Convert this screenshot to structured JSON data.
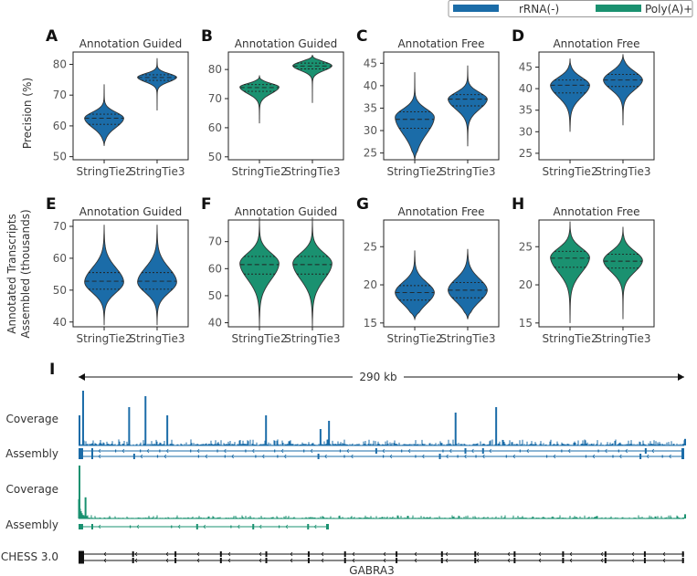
{
  "colors": {
    "rrna": "#1b6ca8",
    "polya": "#1a9170",
    "chess": "#111111"
  },
  "legend": [
    {
      "label": "rRNA(-)",
      "color": "#1b6ca8"
    },
    {
      "label": "Poly(A)+",
      "color": "#1a9170"
    }
  ],
  "row_ylabels": {
    "row1": "Precision (%)",
    "row2_line1": "Annotated Transcripts",
    "row2_line2": "Assembled (thousands)"
  },
  "chart_data": [
    {
      "type": "violin",
      "letter": "A",
      "title": "Annotation Guided",
      "color_key": "rrna",
      "categories": [
        "StringTie2",
        "StringTie3"
      ],
      "ylim": [
        49,
        84
      ],
      "yticks": [
        50,
        60,
        70,
        80
      ],
      "violins": [
        {
          "min": 53.5,
          "max": 73.5,
          "q1": 60.5,
          "median": 62.5,
          "q3": 63.8,
          "mode": 62.5
        },
        {
          "min": 65.0,
          "max": 82.0,
          "q1": 74.8,
          "median": 75.7,
          "q3": 76.6,
          "mode": 75.8
        }
      ]
    },
    {
      "type": "violin",
      "letter": "B",
      "title": "Annotation Guided",
      "color_key": "polya",
      "categories": [
        "StringTie2",
        "StringTie3"
      ],
      "ylim": [
        49,
        86
      ],
      "yticks": [
        50,
        60,
        70,
        80
      ],
      "violins": [
        {
          "min": 61.5,
          "max": 78.0,
          "q1": 72.5,
          "median": 73.8,
          "q3": 74.8,
          "mode": 74.0
        },
        {
          "min": 68.5,
          "max": 85.0,
          "q1": 80.2,
          "median": 81.2,
          "q3": 82.2,
          "mode": 81.3
        }
      ]
    },
    {
      "type": "violin",
      "letter": "C",
      "title": "Annotation Free",
      "color_key": "rrna",
      "categories": [
        "StringTie2",
        "StringTie3"
      ],
      "ylim": [
        23.5,
        47.5
      ],
      "yticks": [
        25,
        30,
        35,
        40,
        45
      ],
      "violins": [
        {
          "min": 23.5,
          "max": 43.0,
          "q1": 30.5,
          "median": 32.5,
          "q3": 34.2,
          "mode": 33.0
        },
        {
          "min": 26.5,
          "max": 44.5,
          "q1": 35.5,
          "median": 37.0,
          "q3": 38.0,
          "mode": 37.0
        }
      ]
    },
    {
      "type": "violin",
      "letter": "D",
      "title": "Annotation Free",
      "color_key": "rrna",
      "categories": [
        "StringTie2",
        "StringTie3"
      ],
      "ylim": [
        23.5,
        48.5
      ],
      "yticks": [
        25,
        30,
        35,
        40,
        45
      ],
      "violins": [
        {
          "min": 30.0,
          "max": 47.0,
          "q1": 39.0,
          "median": 40.8,
          "q3": 42.0,
          "mode": 40.8
        },
        {
          "min": 31.5,
          "max": 48.0,
          "q1": 40.5,
          "median": 42.0,
          "q3": 43.3,
          "mode": 42.0
        }
      ]
    },
    {
      "type": "violin",
      "letter": "E",
      "title": "Annotation Guided",
      "color_key": "rrna",
      "categories": [
        "StringTie2",
        "StringTie3"
      ],
      "ylim": [
        38.5,
        72
      ],
      "yticks": [
        40,
        50,
        60,
        70
      ],
      "violins": [
        {
          "min": 39.0,
          "max": 70.5,
          "q1": 50.3,
          "median": 52.8,
          "q3": 55.5,
          "mode": 52.5
        },
        {
          "min": 39.0,
          "max": 70.5,
          "q1": 50.3,
          "median": 52.8,
          "q3": 55.5,
          "mode": 52.5
        }
      ]
    },
    {
      "type": "violin",
      "letter": "F",
      "title": "Annotation Guided",
      "color_key": "polya",
      "categories": [
        "StringTie2",
        "StringTie3"
      ],
      "ylim": [
        38.5,
        78
      ],
      "yticks": [
        40,
        50,
        60,
        70
      ],
      "violins": [
        {
          "min": 38.5,
          "max": 79.0,
          "q1": 58.0,
          "median": 61.5,
          "q3": 64.5,
          "mode": 62.0
        },
        {
          "min": 38.5,
          "max": 79.0,
          "q1": 58.0,
          "median": 61.5,
          "q3": 64.5,
          "mode": 62.0
        }
      ]
    },
    {
      "type": "violin",
      "letter": "G",
      "title": "Annotation Free",
      "color_key": "rrna",
      "categories": [
        "StringTie2",
        "StringTie3"
      ],
      "ylim": [
        14.5,
        28.5
      ],
      "yticks": [
        15,
        20,
        25
      ],
      "violins": [
        {
          "min": 15.5,
          "max": 24.5,
          "q1": 18.0,
          "median": 19.0,
          "q3": 19.9,
          "mode": 19.0
        },
        {
          "min": 15.5,
          "max": 24.7,
          "q1": 18.3,
          "median": 19.3,
          "q3": 20.3,
          "mode": 19.3
        }
      ]
    },
    {
      "type": "violin",
      "letter": "H",
      "title": "Annotation Free",
      "color_key": "polya",
      "categories": [
        "StringTie2",
        "StringTie3"
      ],
      "ylim": [
        14.5,
        28.5
      ],
      "yticks": [
        15,
        20,
        25
      ],
      "violins": [
        {
          "min": 15.0,
          "max": 28.3,
          "q1": 22.3,
          "median": 23.5,
          "q3": 24.4,
          "mode": 23.6
        },
        {
          "min": 15.5,
          "max": 27.6,
          "q1": 22.2,
          "median": 23.1,
          "q3": 24.0,
          "mode": 23.2
        }
      ]
    }
  ],
  "genome": {
    "letter": "I",
    "scale_label": "290 kb",
    "tracks": [
      {
        "label": "Coverage",
        "kind": "coverage",
        "color_key": "rrna"
      },
      {
        "label": "Assembly",
        "kind": "assembly",
        "color_key": "rrna"
      },
      {
        "label": "Coverage",
        "kind": "coverage",
        "color_key": "polya"
      },
      {
        "label": "Assembly",
        "kind": "assembly",
        "color_key": "polya"
      },
      {
        "label": "CHESS 3.0",
        "kind": "annotation",
        "color_key": "chess"
      }
    ],
    "gene_name": "GABRA3",
    "coverage_rrna_peaks": [
      {
        "pos": 0.0,
        "h": 0.55
      },
      {
        "pos": 0.006,
        "h": 1.0
      },
      {
        "pos": 0.082,
        "h": 0.7
      },
      {
        "pos": 0.109,
        "h": 0.9
      },
      {
        "pos": 0.145,
        "h": 0.55
      },
      {
        "pos": 0.308,
        "h": 0.55
      },
      {
        "pos": 0.398,
        "h": 0.3
      },
      {
        "pos": 0.412,
        "h": 0.45
      },
      {
        "pos": 0.621,
        "h": 0.6
      },
      {
        "pos": 0.688,
        "h": 0.7
      },
      {
        "pos": 1.0,
        "h": 0.12
      }
    ],
    "coverage_polya_peaks": [
      {
        "pos": 0.0,
        "h": 1.0
      },
      {
        "pos": 0.01,
        "h": 0.4
      },
      {
        "pos": 1.0,
        "h": 0.08
      }
    ]
  }
}
